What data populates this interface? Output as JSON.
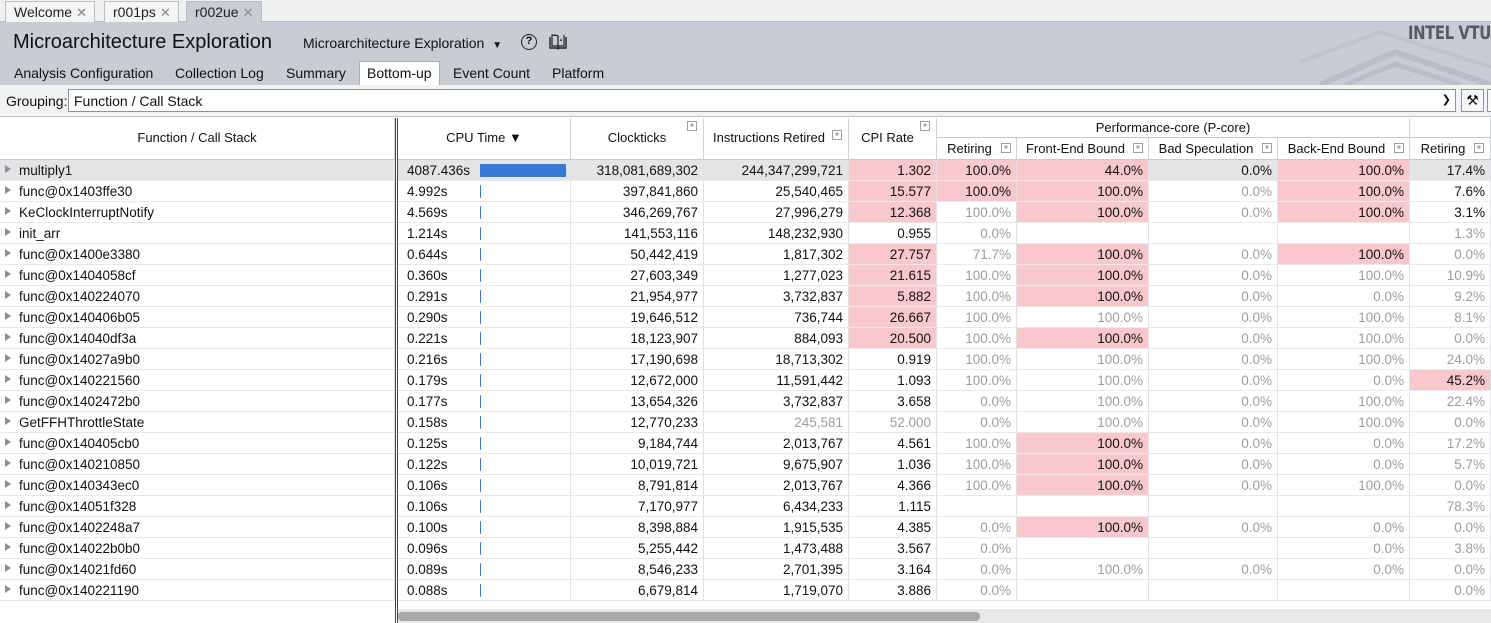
{
  "doc_tabs": [
    {
      "label": "Welcome",
      "active": false
    },
    {
      "label": "r001ps",
      "active": false
    },
    {
      "label": "r002ue",
      "active": true
    }
  ],
  "header": {
    "title": "Microarchitecture Exploration",
    "analysis_type": "Microarchitecture Exploration",
    "help_icon": "question-circle-icon",
    "book_icon": "book-icon",
    "brand": "INTEL VTUNE"
  },
  "view_tabs": [
    {
      "label": "Analysis Configuration",
      "active": false
    },
    {
      "label": "Collection Log",
      "active": false
    },
    {
      "label": "Summary",
      "active": false
    },
    {
      "label": "Bottom-up",
      "active": true
    },
    {
      "label": "Event Count",
      "active": false
    },
    {
      "label": "Platform",
      "active": false
    }
  ],
  "grouping": {
    "label": "Grouping:",
    "value": "Function / Call Stack"
  },
  "columns": {
    "function": "Function / Call Stack",
    "cpu_time": "CPU Time",
    "sort_indicator": "▼",
    "clockticks": "Clockticks",
    "instructions": "Instructions Retired",
    "cpi": "CPI Rate",
    "pcore_group": "Performance-core (P-core)",
    "retiring": "Retiring",
    "frontend": "Front-End Bound",
    "badspec": "Bad Speculation",
    "backend": "Back-End Bound",
    "retiring2": "Retiring"
  },
  "colors": {
    "highlight": "#f8c8cd",
    "cpu_bar": "#3a78d6",
    "selected_row": "#e3e4e6"
  },
  "cpu_time_max": 4087.436,
  "rows": [
    {
      "name": "multiply1",
      "cpu": "4087.436s",
      "cpu_value": 4087.436,
      "clk": "318,081,689,302",
      "inst": "244,347,299,721",
      "cpi": "1.302",
      "ret": "100.0%",
      "fe": "44.0%",
      "bs": "0.0%",
      "be": "100.0%",
      "ret2": "17.4%",
      "hot": [
        "cpi",
        "ret",
        "fe",
        "be"
      ],
      "dim": [],
      "selected": true
    },
    {
      "name": "func@0x1403ffe30",
      "cpu": "4.992s",
      "cpu_value": 4.992,
      "clk": "397,841,860",
      "inst": "25,540,465",
      "cpi": "15.577",
      "ret": "100.0%",
      "fe": "100.0%",
      "bs": "0.0%",
      "be": "100.0%",
      "ret2": "7.6%",
      "hot": [
        "cpi",
        "ret",
        "fe",
        "be"
      ],
      "dim": [
        "bs"
      ]
    },
    {
      "name": "KeClockInterruptNotify",
      "cpu": "4.569s",
      "cpu_value": 4.569,
      "clk": "346,269,767",
      "inst": "27,996,279",
      "cpi": "12.368",
      "ret": "100.0%",
      "fe": "100.0%",
      "bs": "0.0%",
      "be": "100.0%",
      "ret2": "3.1%",
      "hot": [
        "cpi",
        "fe",
        "be"
      ],
      "dim": [
        "ret",
        "bs"
      ]
    },
    {
      "name": "init_arr",
      "cpu": "1.214s",
      "cpu_value": 1.214,
      "clk": "141,553,116",
      "inst": "148,232,930",
      "cpi": "0.955",
      "ret": "0.0%",
      "fe": "",
      "bs": "",
      "be": "",
      "ret2": "1.3%",
      "hot": [],
      "dim": [
        "ret",
        "ret2"
      ]
    },
    {
      "name": "func@0x1400e3380",
      "cpu": "0.644s",
      "cpu_value": 0.644,
      "clk": "50,442,419",
      "inst": "1,817,302",
      "cpi": "27.757",
      "ret": "71.7%",
      "fe": "100.0%",
      "bs": "0.0%",
      "be": "100.0%",
      "ret2": "0.0%",
      "hot": [
        "cpi",
        "fe",
        "be"
      ],
      "dim": [
        "ret",
        "bs",
        "ret2"
      ]
    },
    {
      "name": "func@0x1404058cf",
      "cpu": "0.360s",
      "cpu_value": 0.36,
      "clk": "27,603,349",
      "inst": "1,277,023",
      "cpi": "21.615",
      "ret": "100.0%",
      "fe": "100.0%",
      "bs": "0.0%",
      "be": "100.0%",
      "ret2": "10.9%",
      "hot": [
        "cpi",
        "fe"
      ],
      "dim": [
        "ret",
        "bs",
        "be",
        "ret2"
      ]
    },
    {
      "name": "func@0x140224070",
      "cpu": "0.291s",
      "cpu_value": 0.291,
      "clk": "21,954,977",
      "inst": "3,732,837",
      "cpi": "5.882",
      "ret": "100.0%",
      "fe": "100.0%",
      "bs": "0.0%",
      "be": "0.0%",
      "ret2": "9.2%",
      "hot": [
        "cpi",
        "fe"
      ],
      "dim": [
        "ret",
        "bs",
        "be",
        "ret2"
      ]
    },
    {
      "name": "func@0x140406b05",
      "cpu": "0.290s",
      "cpu_value": 0.29,
      "clk": "19,646,512",
      "inst": "736,744",
      "cpi": "26.667",
      "ret": "100.0%",
      "fe": "100.0%",
      "bs": "0.0%",
      "be": "100.0%",
      "ret2": "8.1%",
      "hot": [
        "cpi"
      ],
      "dim": [
        "ret",
        "fe",
        "bs",
        "be",
        "ret2"
      ]
    },
    {
      "name": "func@0x14040df3a",
      "cpu": "0.221s",
      "cpu_value": 0.221,
      "clk": "18,123,907",
      "inst": "884,093",
      "cpi": "20.500",
      "ret": "100.0%",
      "fe": "100.0%",
      "bs": "0.0%",
      "be": "100.0%",
      "ret2": "0.0%",
      "hot": [
        "cpi",
        "fe"
      ],
      "dim": [
        "ret",
        "bs",
        "be",
        "ret2"
      ]
    },
    {
      "name": "func@0x14027a9b0",
      "cpu": "0.216s",
      "cpu_value": 0.216,
      "clk": "17,190,698",
      "inst": "18,713,302",
      "cpi": "0.919",
      "ret": "100.0%",
      "fe": "100.0%",
      "bs": "0.0%",
      "be": "100.0%",
      "ret2": "24.0%",
      "hot": [],
      "dim": [
        "ret",
        "fe",
        "bs",
        "be",
        "ret2"
      ]
    },
    {
      "name": "func@0x140221560",
      "cpu": "0.179s",
      "cpu_value": 0.179,
      "clk": "12,672,000",
      "inst": "11,591,442",
      "cpi": "1.093",
      "ret": "100.0%",
      "fe": "100.0%",
      "bs": "0.0%",
      "be": "0.0%",
      "ret2": "45.2%",
      "hot": [
        "ret2"
      ],
      "dim": [
        "ret",
        "fe",
        "bs",
        "be"
      ]
    },
    {
      "name": "func@0x1402472b0",
      "cpu": "0.177s",
      "cpu_value": 0.177,
      "clk": "13,654,326",
      "inst": "3,732,837",
      "cpi": "3.658",
      "ret": "0.0%",
      "fe": "100.0%",
      "bs": "0.0%",
      "be": "100.0%",
      "ret2": "22.4%",
      "hot": [],
      "dim": [
        "ret",
        "fe",
        "bs",
        "be",
        "ret2"
      ]
    },
    {
      "name": "GetFFHThrottleState",
      "cpu": "0.158s",
      "cpu_value": 0.158,
      "clk": "12,770,233",
      "inst": "245,581",
      "cpi": "52.000",
      "ret": "0.0%",
      "fe": "100.0%",
      "bs": "0.0%",
      "be": "100.0%",
      "ret2": "0.0%",
      "hot": [],
      "dim": [
        "inst",
        "cpi",
        "ret",
        "fe",
        "bs",
        "be",
        "ret2"
      ]
    },
    {
      "name": "func@0x140405cb0",
      "cpu": "0.125s",
      "cpu_value": 0.125,
      "clk": "9,184,744",
      "inst": "2,013,767",
      "cpi": "4.561",
      "ret": "100.0%",
      "fe": "100.0%",
      "bs": "0.0%",
      "be": "0.0%",
      "ret2": "17.2%",
      "hot": [
        "fe"
      ],
      "dim": [
        "ret",
        "bs",
        "be",
        "ret2"
      ]
    },
    {
      "name": "func@0x140210850",
      "cpu": "0.122s",
      "cpu_value": 0.122,
      "clk": "10,019,721",
      "inst": "9,675,907",
      "cpi": "1.036",
      "ret": "100.0%",
      "fe": "100.0%",
      "bs": "0.0%",
      "be": "0.0%",
      "ret2": "5.7%",
      "hot": [
        "fe"
      ],
      "dim": [
        "ret",
        "bs",
        "be",
        "ret2"
      ]
    },
    {
      "name": "func@0x140343ec0",
      "cpu": "0.106s",
      "cpu_value": 0.106,
      "clk": "8,791,814",
      "inst": "2,013,767",
      "cpi": "4.366",
      "ret": "100.0%",
      "fe": "100.0%",
      "bs": "0.0%",
      "be": "100.0%",
      "ret2": "0.0%",
      "hot": [
        "fe"
      ],
      "dim": [
        "ret",
        "bs",
        "be",
        "ret2"
      ]
    },
    {
      "name": "func@0x14051f328",
      "cpu": "0.106s",
      "cpu_value": 0.106,
      "clk": "7,170,977",
      "inst": "6,434,233",
      "cpi": "1.115",
      "ret": "",
      "fe": "",
      "bs": "",
      "be": "",
      "ret2": "78.3%",
      "hot": [],
      "dim": [
        "ret2"
      ]
    },
    {
      "name": "func@0x1402248a7",
      "cpu": "0.100s",
      "cpu_value": 0.1,
      "clk": "8,398,884",
      "inst": "1,915,535",
      "cpi": "4.385",
      "ret": "0.0%",
      "fe": "100.0%",
      "bs": "0.0%",
      "be": "0.0%",
      "ret2": "0.0%",
      "hot": [
        "fe"
      ],
      "dim": [
        "ret",
        "bs",
        "be",
        "ret2"
      ]
    },
    {
      "name": "func@0x14022b0b0",
      "cpu": "0.096s",
      "cpu_value": 0.096,
      "clk": "5,255,442",
      "inst": "1,473,488",
      "cpi": "3.567",
      "ret": "0.0%",
      "fe": "",
      "bs": "",
      "be": "0.0%",
      "ret2": "3.8%",
      "hot": [],
      "dim": [
        "ret",
        "be",
        "ret2"
      ]
    },
    {
      "name": "func@0x14021fd60",
      "cpu": "0.089s",
      "cpu_value": 0.089,
      "clk": "8,546,233",
      "inst": "2,701,395",
      "cpi": "3.164",
      "ret": "0.0%",
      "fe": "100.0%",
      "bs": "0.0%",
      "be": "0.0%",
      "ret2": "0.0%",
      "hot": [],
      "dim": [
        "ret",
        "fe",
        "bs",
        "be",
        "ret2"
      ]
    },
    {
      "name": "func@0x140221190",
      "cpu": "0.088s",
      "cpu_value": 0.088,
      "clk": "6,679,814",
      "inst": "1,719,070",
      "cpi": "3.886",
      "ret": "0.0%",
      "fe": "",
      "bs": "",
      "be": "",
      "ret2": "0.0%",
      "hot": [],
      "dim": [
        "ret",
        "ret2"
      ]
    }
  ]
}
